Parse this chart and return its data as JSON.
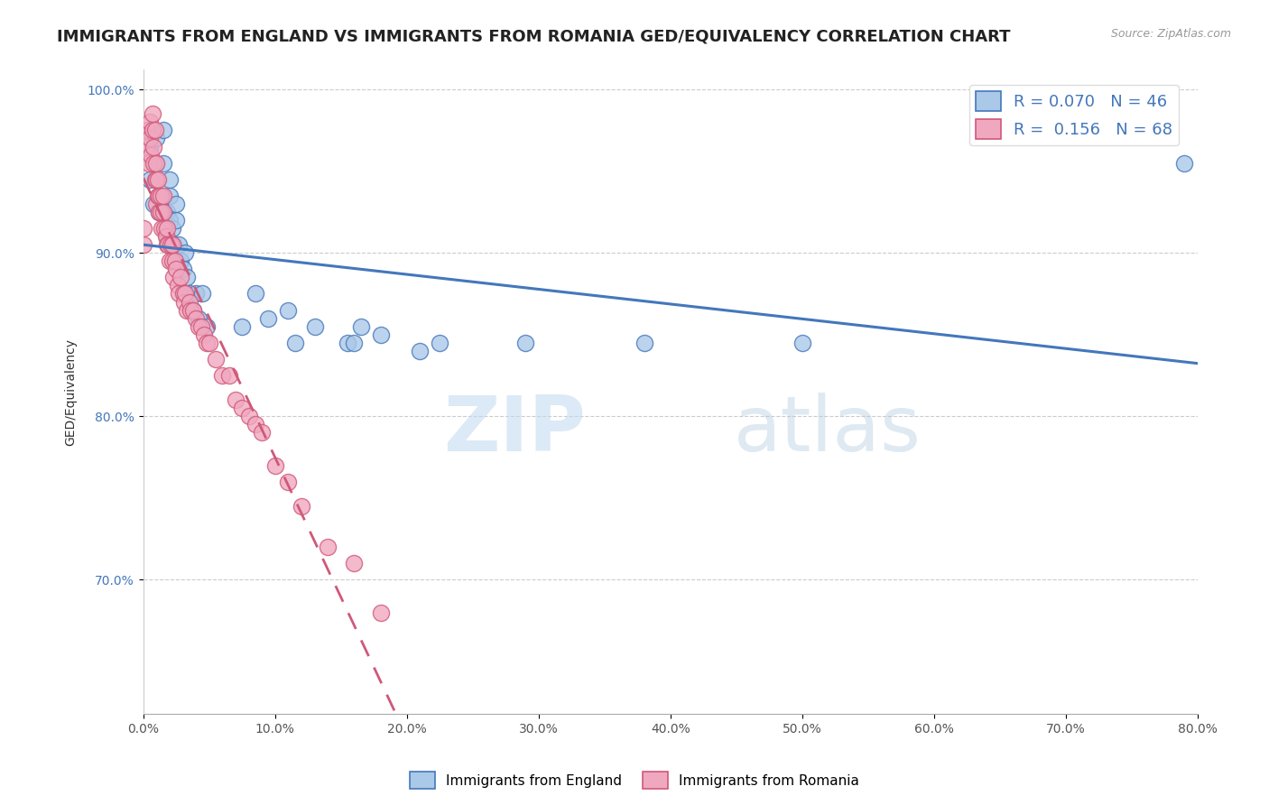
{
  "title": "IMMIGRANTS FROM ENGLAND VS IMMIGRANTS FROM ROMANIA GED/EQUIVALENCY CORRELATION CHART",
  "source": "Source: ZipAtlas.com",
  "ylabel": "GED/Equivalency",
  "legend_england": "Immigrants from England",
  "legend_romania": "Immigrants from Romania",
  "R_england": 0.07,
  "N_england": 46,
  "R_romania": 0.156,
  "N_romania": 68,
  "color_england": "#aac8e8",
  "color_romania": "#f0a8c0",
  "trendline_england": "#4477bb",
  "trendline_romania": "#d05878",
  "xmin": 0.0,
  "xmax": 0.8,
  "ymin": 0.618,
  "ymax": 1.012,
  "yticks": [
    0.7,
    0.8,
    0.9,
    1.0
  ],
  "ytick_labels": [
    "70.0%",
    "80.0%",
    "90.0%",
    "100.0%"
  ],
  "england_x": [
    0.005,
    0.005,
    0.005,
    0.008,
    0.01,
    0.01,
    0.012,
    0.014,
    0.015,
    0.015,
    0.018,
    0.018,
    0.02,
    0.02,
    0.02,
    0.022,
    0.023,
    0.025,
    0.025,
    0.027,
    0.028,
    0.03,
    0.032,
    0.033,
    0.035,
    0.038,
    0.04,
    0.042,
    0.045,
    0.048,
    0.075,
    0.085,
    0.095,
    0.11,
    0.115,
    0.13,
    0.155,
    0.16,
    0.165,
    0.18,
    0.21,
    0.225,
    0.29,
    0.38,
    0.5,
    0.79
  ],
  "england_y": [
    0.945,
    0.97,
    0.965,
    0.93,
    0.955,
    0.97,
    0.925,
    0.935,
    0.955,
    0.975,
    0.925,
    0.91,
    0.92,
    0.935,
    0.945,
    0.915,
    0.905,
    0.92,
    0.93,
    0.905,
    0.895,
    0.89,
    0.9,
    0.885,
    0.875,
    0.865,
    0.875,
    0.86,
    0.875,
    0.855,
    0.855,
    0.875,
    0.86,
    0.865,
    0.845,
    0.855,
    0.845,
    0.845,
    0.855,
    0.85,
    0.84,
    0.845,
    0.845,
    0.845,
    0.845,
    0.955
  ],
  "romania_x": [
    0.0,
    0.0,
    0.002,
    0.003,
    0.004,
    0.005,
    0.005,
    0.006,
    0.007,
    0.007,
    0.008,
    0.008,
    0.009,
    0.009,
    0.01,
    0.01,
    0.01,
    0.011,
    0.011,
    0.012,
    0.012,
    0.013,
    0.013,
    0.014,
    0.015,
    0.015,
    0.016,
    0.017,
    0.018,
    0.018,
    0.019,
    0.02,
    0.021,
    0.022,
    0.022,
    0.023,
    0.024,
    0.025,
    0.026,
    0.027,
    0.028,
    0.03,
    0.031,
    0.032,
    0.033,
    0.035,
    0.036,
    0.038,
    0.04,
    0.042,
    0.044,
    0.046,
    0.048,
    0.05,
    0.055,
    0.06,
    0.065,
    0.07,
    0.075,
    0.08,
    0.085,
    0.09,
    0.1,
    0.11,
    0.12,
    0.14,
    0.16,
    0.18
  ],
  "romania_y": [
    0.905,
    0.915,
    0.965,
    0.975,
    0.955,
    0.97,
    0.98,
    0.96,
    0.975,
    0.985,
    0.955,
    0.965,
    0.945,
    0.975,
    0.93,
    0.945,
    0.955,
    0.935,
    0.945,
    0.925,
    0.935,
    0.925,
    0.935,
    0.915,
    0.925,
    0.935,
    0.915,
    0.91,
    0.905,
    0.915,
    0.905,
    0.895,
    0.905,
    0.895,
    0.905,
    0.885,
    0.895,
    0.89,
    0.88,
    0.875,
    0.885,
    0.875,
    0.87,
    0.875,
    0.865,
    0.87,
    0.865,
    0.865,
    0.86,
    0.855,
    0.855,
    0.85,
    0.845,
    0.845,
    0.835,
    0.825,
    0.825,
    0.81,
    0.805,
    0.8,
    0.795,
    0.79,
    0.77,
    0.76,
    0.745,
    0.72,
    0.71,
    0.68
  ],
  "watermark_zip": "ZIP",
  "watermark_atlas": "atlas",
  "title_fontsize": 13,
  "axis_label_fontsize": 10,
  "tick_fontsize": 10
}
